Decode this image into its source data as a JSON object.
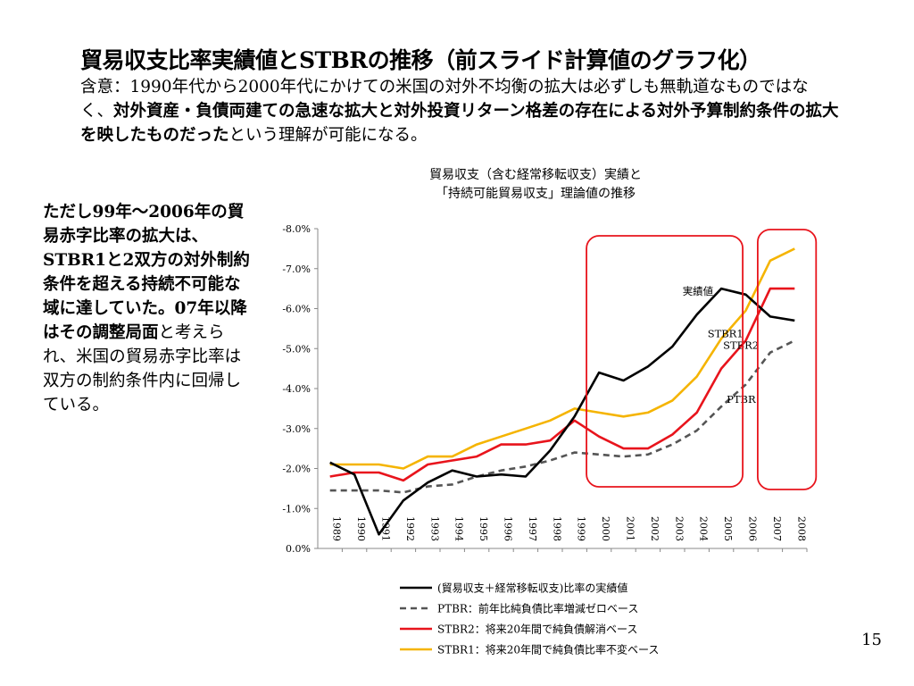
{
  "slide": {
    "title": "貿易収支比率実績値とSTBRの推移（前スライド計算値のグラフ化）",
    "intro_plain_1": "含意：1990年代から2000年代にかけての米国の対外不均衡の拡大は必ずしも無軌道なものではなく、",
    "intro_bold": "対外資産・負債両建ての急速な拡大と対外投資リターン格差の存在による対外予算制約条件の拡大を映したものだった",
    "intro_plain_2": "という理解が可能になる。",
    "side_bold": "ただし99年～2006年の貿易赤字比率の拡大は、STBR1と2双方の対外制約条件を超える持続不可能な域に達していた。07年以降はその調整局面",
    "side_plain": "と考えられ、米国の貿易赤字比率は双方の制約条件内に回帰している。",
    "page_number": "15"
  },
  "chart_data": {
    "type": "line",
    "title_line1": "貿易収支（含む経常移転収支）実績と",
    "title_line2": "「持続可能貿易収支」理論値の推移",
    "categories": [
      "1989",
      "1990",
      "1991",
      "1992",
      "1993",
      "1994",
      "1995",
      "1996",
      "1997",
      "1998",
      "1999",
      "2000",
      "2001",
      "2002",
      "2003",
      "2004",
      "2005",
      "2006",
      "2007",
      "2008"
    ],
    "y_ticks": [
      "0.0%",
      "-1.0%",
      "-2.0%",
      "-3.0%",
      "-4.0%",
      "-5.0%",
      "-6.0%",
      "-7.0%",
      "-8.0%"
    ],
    "ylim": [
      0,
      -8
    ],
    "grid": false,
    "legend_position": "bottom",
    "series": [
      {
        "name": "(貿易収支＋経常移転収支)比率の実績値",
        "color": "#000000",
        "dash": "solid",
        "label": "実績値",
        "values": [
          -2.15,
          -1.85,
          -0.35,
          -1.2,
          -1.65,
          -1.95,
          -1.8,
          -1.85,
          -1.8,
          -2.45,
          -3.3,
          -4.4,
          -4.2,
          -4.55,
          -5.05,
          -5.85,
          -6.5,
          -6.35,
          -5.8,
          -5.7
        ]
      },
      {
        "name": "PTBR：前年比純負債比率増減ゼロベース",
        "color": "#555555",
        "dash": "dashed",
        "label": "PTBR",
        "values": [
          -1.45,
          -1.45,
          -1.45,
          -1.4,
          -1.55,
          -1.6,
          -1.8,
          -1.95,
          -2.05,
          -2.2,
          -2.4,
          -2.35,
          -2.3,
          -2.35,
          -2.6,
          -2.95,
          -3.55,
          -4.1,
          -4.9,
          -5.2
        ]
      },
      {
        "name": "STBR2：将来20年間で純負債解消ベース",
        "color": "#e8141c",
        "dash": "solid",
        "label": "STBR2",
        "values": [
          -1.8,
          -1.9,
          -1.9,
          -1.7,
          -2.1,
          -2.2,
          -2.3,
          -2.6,
          -2.6,
          -2.7,
          -3.2,
          -2.8,
          -2.5,
          -2.5,
          -2.85,
          -3.4,
          -4.5,
          -5.2,
          -6.5,
          -6.5
        ]
      },
      {
        "name": "STBR1：将来20年間で純負債比率不変ベース",
        "color": "#f5b400",
        "dash": "solid",
        "label": "STBR1",
        "values": [
          -2.1,
          -2.1,
          -2.1,
          -2.0,
          -2.3,
          -2.3,
          -2.6,
          -2.8,
          -3.0,
          -3.2,
          -3.5,
          -3.4,
          -3.3,
          -3.4,
          -3.7,
          -4.3,
          -5.25,
          -5.95,
          -7.2,
          -7.5
        ]
      }
    ],
    "highlight_boxes": [
      {
        "from": "2000",
        "to": "2005",
        "color": "#e8141c"
      },
      {
        "from": "2007",
        "to": "2008",
        "color": "#e8141c"
      }
    ]
  }
}
